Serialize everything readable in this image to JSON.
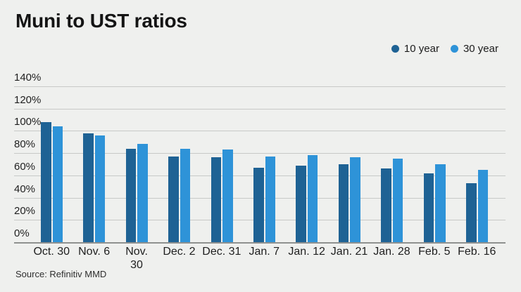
{
  "title": "Muni to UST ratios",
  "source": "Source: Refinitiv MMD",
  "legend": [
    {
      "label": "10 year",
      "color": "#1e6294"
    },
    {
      "label": "30 year",
      "color": "#2e93d8"
    }
  ],
  "chart_data": {
    "type": "bar",
    "title": "Muni to UST ratios",
    "categories": [
      "Oct. 30",
      "Nov. 6",
      "Nov.\n30",
      "Dec. 2",
      "Dec. 31",
      "Jan. 7",
      "Jan. 12",
      "Jan. 21",
      "Jan. 28",
      "Feb. 5",
      "Feb. 16"
    ],
    "series": [
      {
        "name": "10 year",
        "color": "#1e6294",
        "values": [
          108,
          98,
          84,
          77,
          76,
          67,
          69,
          70,
          66,
          62,
          53
        ]
      },
      {
        "name": "30 year",
        "color": "#2e93d8",
        "values": [
          104,
          96,
          88,
          84,
          83,
          77,
          78,
          76,
          75,
          70,
          65
        ]
      }
    ],
    "xlabel": "",
    "ylabel": "",
    "ylim": [
      0,
      140
    ],
    "yticks": [
      0,
      20,
      40,
      60,
      80,
      100,
      120,
      140
    ],
    "ytick_format": "percent",
    "grid": true,
    "legend_position": "top-right",
    "source": "Source: Refinitiv MMD"
  }
}
